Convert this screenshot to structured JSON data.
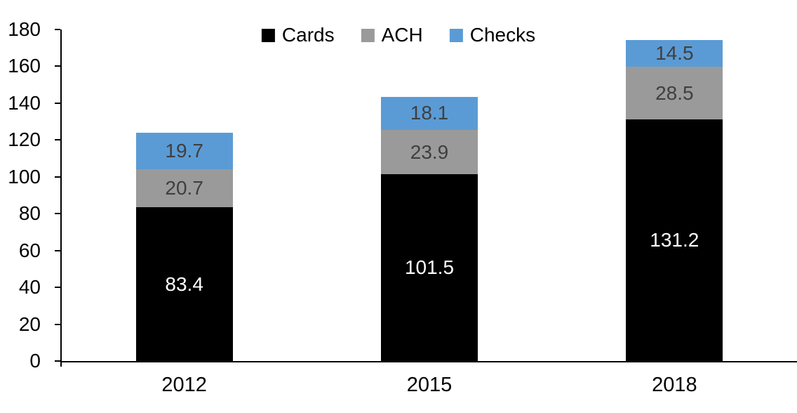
{
  "chart": {
    "background_color": "#ffffff",
    "axis_color": "#000000",
    "text_color": "#000000"
  },
  "chart_data": {
    "type": "bar",
    "stacked": true,
    "categories": [
      "2012",
      "2015",
      "2018"
    ],
    "series": [
      {
        "name": "Cards",
        "color": "#000000",
        "label_color": "#ffffff",
        "values": [
          83.4,
          101.5,
          131.2
        ]
      },
      {
        "name": "ACH",
        "color": "#9A9A9A",
        "label_color": "#3F3F3F",
        "values": [
          20.7,
          23.9,
          28.5
        ]
      },
      {
        "name": "Checks",
        "color": "#5B9BD5",
        "label_color": "#3F3F3F",
        "values": [
          19.7,
          18.1,
          14.5
        ]
      }
    ],
    "totals": [
      123.8,
      143.5,
      174.2
    ],
    "ylim": [
      0,
      180
    ],
    "yticks": [
      0,
      20,
      40,
      60,
      80,
      100,
      120,
      140,
      160,
      180
    ],
    "grid": false,
    "legend_position": "top",
    "data_labels": "inside-center"
  }
}
